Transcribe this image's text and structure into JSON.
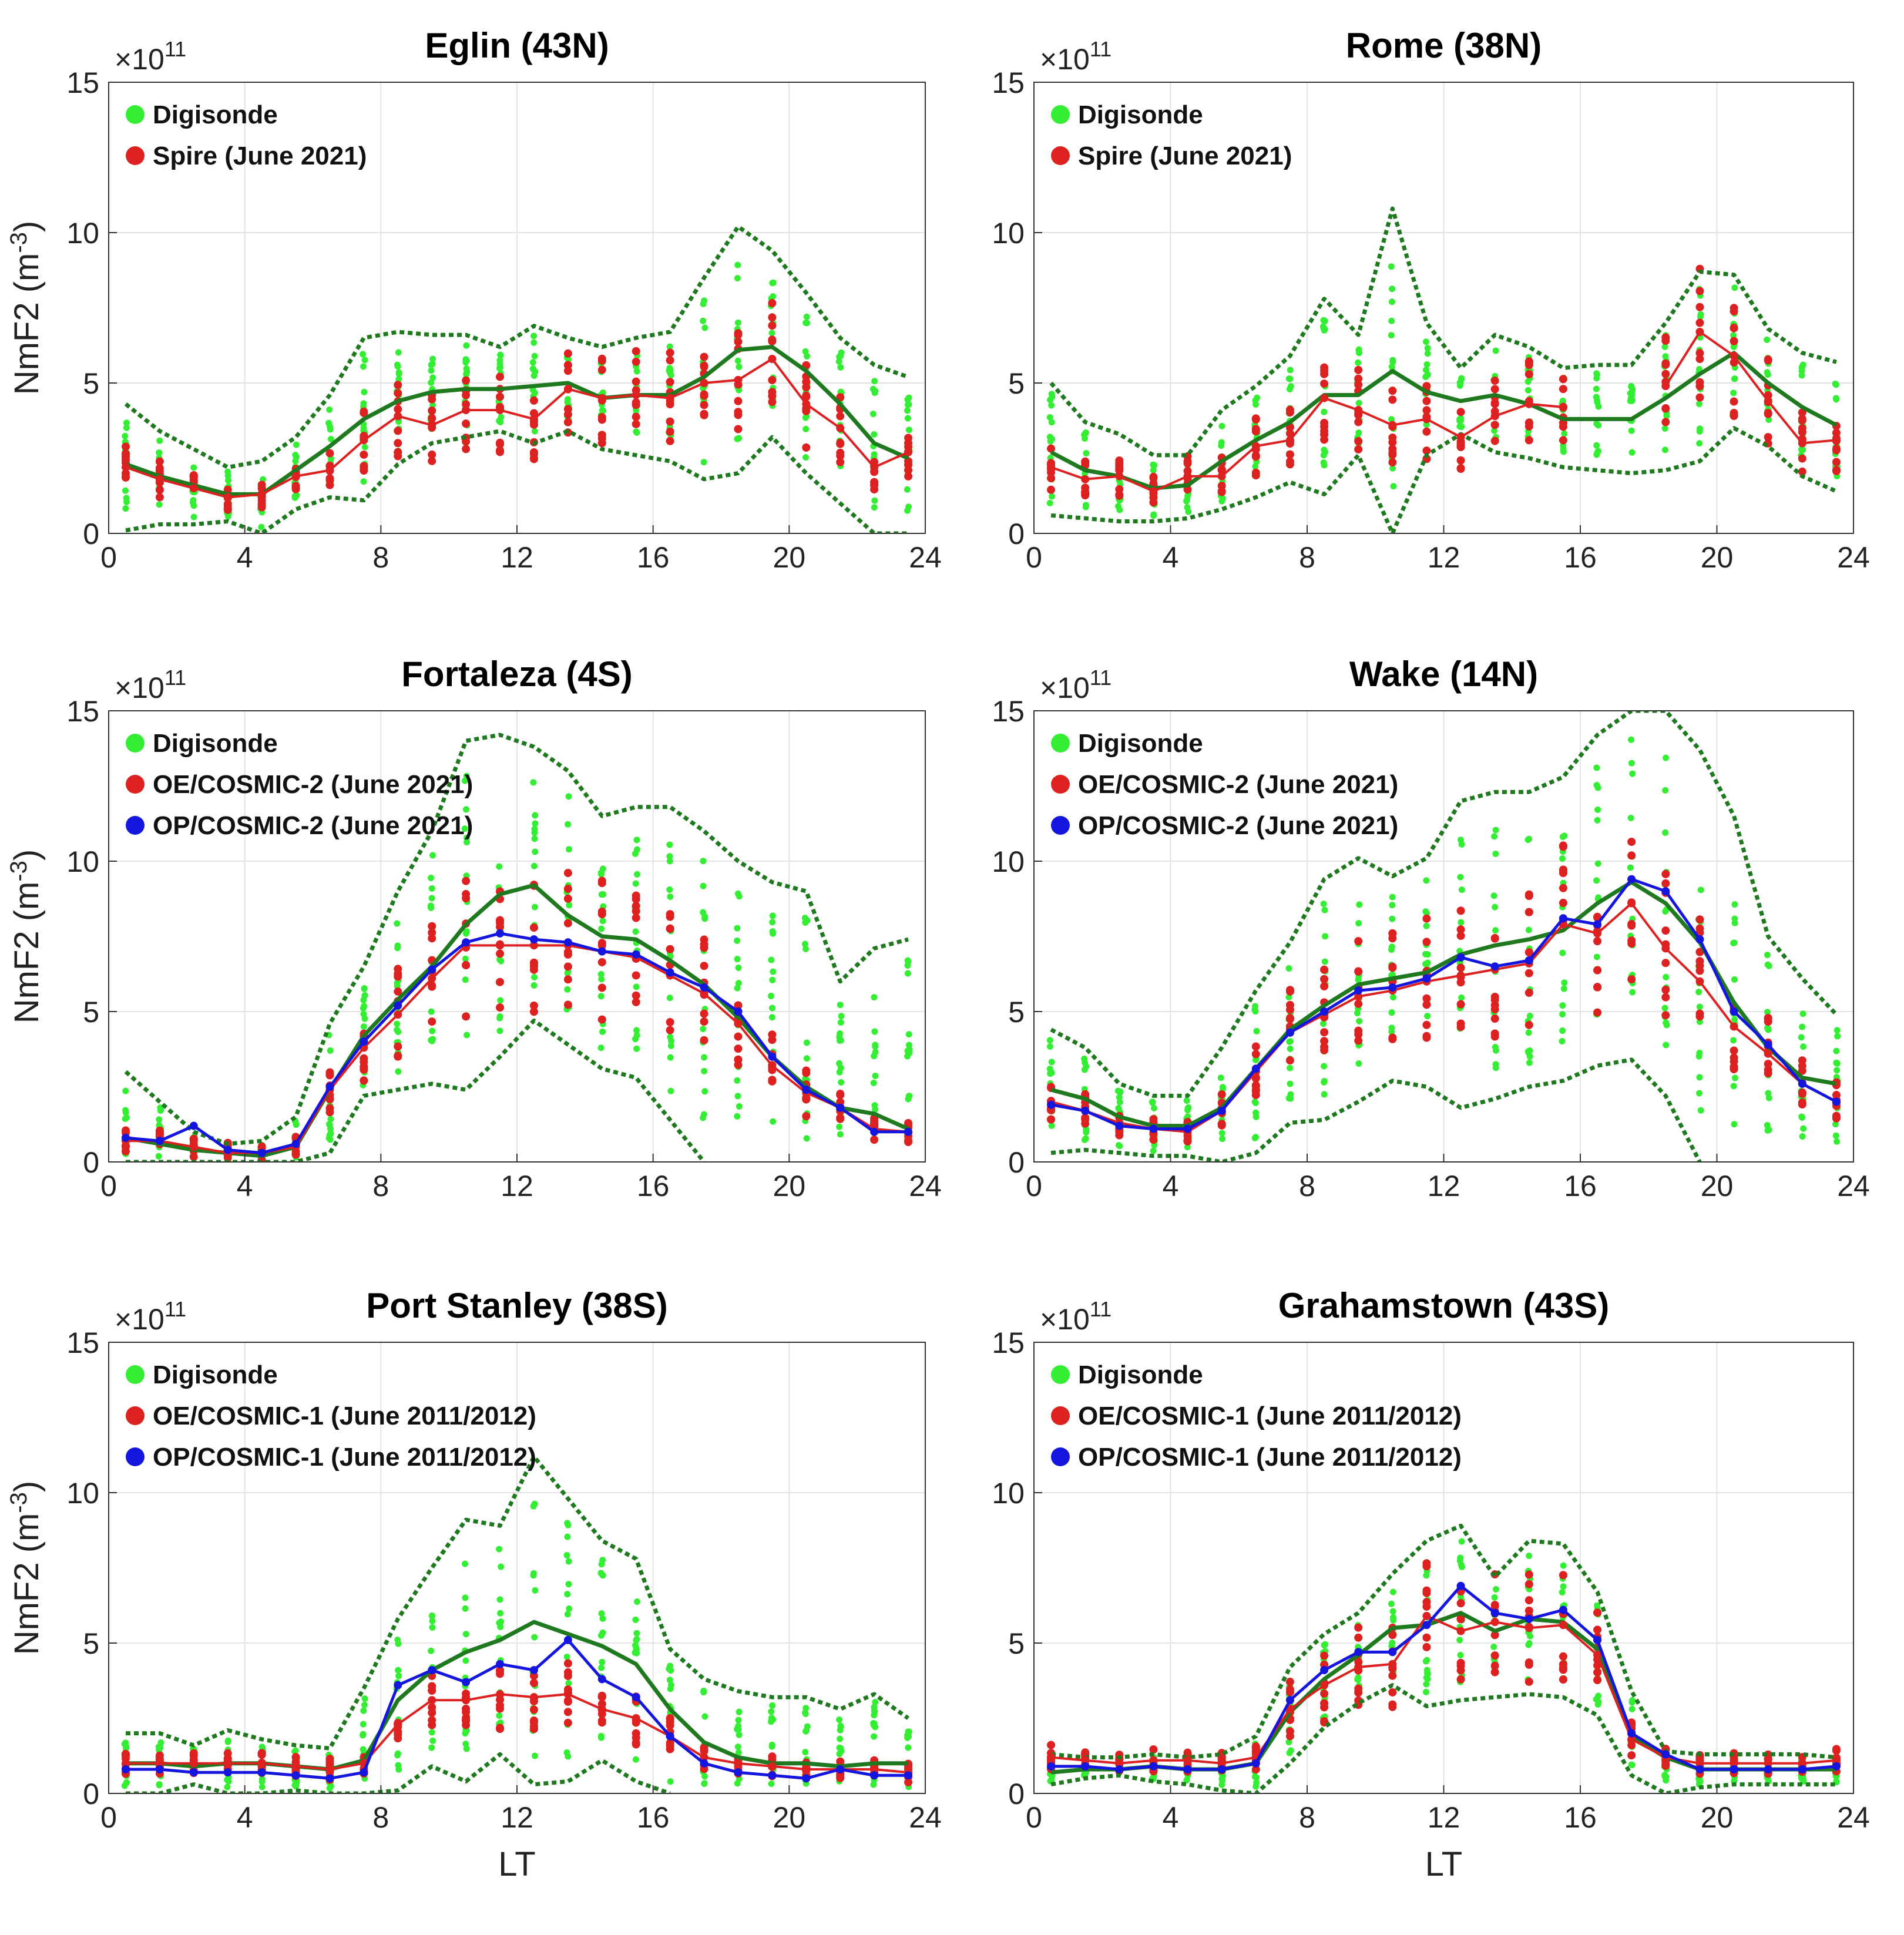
{
  "figure": {
    "ylabel_base": "NmF2 (m",
    "ylabel_sup": "-3",
    "ylabel_close": ")",
    "xlabel": "LT",
    "exponent_base": "×10",
    "exponent_power": "11",
    "colors": {
      "digisonde": "#33ee33",
      "oe": "#dd2020",
      "op": "#1515e0",
      "mean": "#1f7a1f",
      "bounds": "#1f7a1f"
    }
  },
  "chart_data": [
    {
      "type": "line",
      "title": "Eglin (43N)",
      "xlabel": "",
      "ylabel": "NmF2 (m-3)",
      "xlim": [
        0,
        24
      ],
      "ylim": [
        0,
        15
      ],
      "xticks": [
        "0",
        "4",
        "8",
        "12",
        "16",
        "20",
        "24"
      ],
      "yticks": [
        "0",
        "5",
        "10",
        "15"
      ],
      "y_multiplier": "1e11",
      "legend": [
        "Digisonde",
        "Spire (June 2021)"
      ],
      "x": [
        0.5,
        1.5,
        2.5,
        3.5,
        4.5,
        5.5,
        6.5,
        7.5,
        8.5,
        9.5,
        10.5,
        11.5,
        12.5,
        13.5,
        14.5,
        15.5,
        16.5,
        17.5,
        18.5,
        19.5,
        20.5,
        21.5,
        22.5,
        23.5
      ],
      "series": [
        {
          "name": "Digisonde mean",
          "values": [
            2.3,
            1.9,
            1.6,
            1.3,
            1.3,
            2.1,
            2.9,
            3.8,
            4.4,
            4.7,
            4.8,
            4.8,
            4.9,
            5.0,
            4.5,
            4.6,
            4.6,
            5.2,
            6.1,
            6.2,
            5.4,
            4.3,
            3.0,
            2.5
          ]
        },
        {
          "name": "Digisonde upper",
          "values": [
            4.3,
            3.4,
            2.8,
            2.2,
            2.4,
            3.2,
            4.6,
            6.5,
            6.7,
            6.6,
            6.6,
            6.2,
            6.9,
            6.5,
            6.2,
            6.5,
            6.7,
            8.5,
            10.2,
            9.4,
            8.0,
            6.5,
            5.6,
            5.2
          ]
        },
        {
          "name": "Digisonde lower",
          "values": [
            0.1,
            0.3,
            0.3,
            0.4,
            0.0,
            0.8,
            1.2,
            1.1,
            2.3,
            3.0,
            3.2,
            3.4,
            3.0,
            3.4,
            2.8,
            2.6,
            2.4,
            1.8,
            2.0,
            3.2,
            2.0,
            1.0,
            0.0,
            0.0
          ]
        },
        {
          "name": "Spire (June 2021)",
          "values": [
            2.2,
            1.8,
            1.5,
            1.2,
            1.3,
            1.9,
            2.1,
            3.1,
            3.9,
            3.6,
            4.1,
            4.1,
            3.8,
            4.8,
            4.5,
            4.6,
            4.5,
            5.0,
            5.1,
            5.8,
            4.3,
            3.5,
            2.2,
            2.7
          ]
        }
      ]
    },
    {
      "type": "line",
      "title": "Rome (38N)",
      "xlabel": "",
      "ylabel": "",
      "xlim": [
        0,
        24
      ],
      "ylim": [
        0,
        15
      ],
      "xticks": [
        "0",
        "4",
        "8",
        "12",
        "16",
        "20",
        "24"
      ],
      "yticks": [
        "0",
        "5",
        "10",
        "15"
      ],
      "y_multiplier": "1e11",
      "legend": [
        "Digisonde",
        "Spire (June 2021)"
      ],
      "x": [
        0.5,
        1.5,
        2.5,
        3.5,
        4.5,
        5.5,
        6.5,
        7.5,
        8.5,
        9.5,
        10.5,
        11.5,
        12.5,
        13.5,
        14.5,
        15.5,
        16.5,
        17.5,
        18.5,
        19.5,
        20.5,
        21.5,
        22.5,
        23.5
      ],
      "series": [
        {
          "name": "Digisonde mean",
          "values": [
            2.7,
            2.1,
            1.9,
            1.5,
            1.6,
            2.4,
            3.1,
            3.7,
            4.6,
            4.6,
            5.4,
            4.7,
            4.4,
            4.6,
            4.3,
            3.8,
            3.8,
            3.8,
            4.5,
            5.3,
            6.0,
            5.0,
            4.2,
            3.6
          ]
        },
        {
          "name": "Digisonde upper",
          "values": [
            5.0,
            3.7,
            3.3,
            2.6,
            2.6,
            4.1,
            4.9,
            5.9,
            7.8,
            6.6,
            10.8,
            7.0,
            5.5,
            6.6,
            6.2,
            5.5,
            5.6,
            5.6,
            7.0,
            8.7,
            8.6,
            6.8,
            6.0,
            5.7
          ]
        },
        {
          "name": "Digisonde lower",
          "values": [
            0.6,
            0.5,
            0.4,
            0.4,
            0.5,
            0.8,
            1.2,
            1.7,
            1.3,
            2.6,
            0.0,
            2.6,
            3.3,
            2.7,
            2.5,
            2.2,
            2.1,
            2.0,
            2.1,
            2.4,
            3.5,
            2.9,
            1.9,
            1.4
          ]
        },
        {
          "name": "Spire (June 2021)",
          "values": [
            2.2,
            1.8,
            1.9,
            1.4,
            1.9,
            1.9,
            2.9,
            3.1,
            4.5,
            4.1,
            3.6,
            3.8,
            3.2,
            3.9,
            4.3,
            4.2,
            null,
            null,
            4.9,
            6.7,
            5.9,
            4.4,
            3.0,
            3.1
          ]
        }
      ]
    },
    {
      "type": "line",
      "title": "Fortaleza (4S)",
      "xlabel": "",
      "ylabel": "NmF2 (m-3)",
      "xlim": [
        0,
        24
      ],
      "ylim": [
        0,
        15
      ],
      "xticks": [
        "0",
        "4",
        "8",
        "12",
        "16",
        "20",
        "24"
      ],
      "yticks": [
        "0",
        "5",
        "10",
        "15"
      ],
      "y_multiplier": "1e11",
      "legend": [
        "Digisonde",
        "OE/COSMIC-2 (June 2021)",
        "OP/COSMIC-2 (June 2021)"
      ],
      "x": [
        0.5,
        1.5,
        2.5,
        3.5,
        4.5,
        5.5,
        6.5,
        7.5,
        8.5,
        9.5,
        10.5,
        11.5,
        12.5,
        13.5,
        14.5,
        15.5,
        16.5,
        17.5,
        18.5,
        19.5,
        20.5,
        21.5,
        22.5,
        23.5
      ],
      "series": [
        {
          "name": "Digisonde mean",
          "values": [
            0.8,
            0.6,
            0.4,
            0.3,
            0.2,
            0.5,
            2.4,
            4.2,
            5.4,
            6.5,
            7.9,
            8.9,
            9.2,
            8.2,
            7.5,
            7.4,
            6.7,
            5.9,
            4.8,
            3.5,
            2.5,
            1.8,
            1.6,
            1.1
          ]
        },
        {
          "name": "Digisonde upper",
          "values": [
            3.0,
            2.0,
            1.0,
            0.6,
            0.7,
            1.5,
            4.6,
            6.5,
            9.0,
            11.0,
            14.0,
            14.2,
            13.8,
            13.0,
            11.5,
            11.8,
            11.8,
            11.0,
            10.0,
            9.3,
            9.0,
            6.0,
            7.1,
            7.4
          ]
        },
        {
          "name": "Digisonde lower",
          "values": [
            0.0,
            0.0,
            0.0,
            0.0,
            0.0,
            0.0,
            0.3,
            2.2,
            2.4,
            2.6,
            2.4,
            3.5,
            4.7,
            3.9,
            3.1,
            2.8,
            1.4,
            0.0,
            null,
            null,
            null,
            null,
            null,
            null
          ]
        },
        {
          "name": "OE/COSMIC-2 (June 2021)",
          "values": [
            0.7,
            0.7,
            0.5,
            0.3,
            0.3,
            0.5,
            2.4,
            3.8,
            4.9,
            6.1,
            7.2,
            7.2,
            7.2,
            7.2,
            7.0,
            6.8,
            6.2,
            5.6,
            4.6,
            3.2,
            2.3,
            1.8,
            1.1,
            1.0
          ]
        },
        {
          "name": "OP/COSMIC-2 (June 2021)",
          "values": [
            0.8,
            0.7,
            1.2,
            0.4,
            0.3,
            0.6,
            2.5,
            4.0,
            5.2,
            6.4,
            7.3,
            7.6,
            7.4,
            7.3,
            7.0,
            6.9,
            6.3,
            5.8,
            5.0,
            3.5,
            2.4,
            1.8,
            1.0,
            1.0
          ]
        }
      ]
    },
    {
      "type": "line",
      "title": "Wake (14N)",
      "xlabel": "",
      "ylabel": "",
      "xlim": [
        0,
        24
      ],
      "ylim": [
        0,
        15
      ],
      "xticks": [
        "0",
        "4",
        "8",
        "12",
        "16",
        "20",
        "24"
      ],
      "yticks": [
        "0",
        "5",
        "10",
        "15"
      ],
      "y_multiplier": "1e11",
      "legend": [
        "Digisonde",
        "OE/COSMIC-2 (June 2021)",
        "OP/COSMIC-2 (June 2021)"
      ],
      "x": [
        0.5,
        1.5,
        2.5,
        3.5,
        4.5,
        5.5,
        6.5,
        7.5,
        8.5,
        9.5,
        10.5,
        11.5,
        12.5,
        13.5,
        14.5,
        15.5,
        16.5,
        17.5,
        18.5,
        19.5,
        20.5,
        21.5,
        22.5,
        23.5
      ],
      "series": [
        {
          "name": "Digisonde mean",
          "values": [
            2.4,
            2.1,
            1.5,
            1.2,
            1.2,
            1.8,
            3.1,
            4.4,
            5.2,
            5.9,
            6.1,
            6.3,
            6.9,
            7.2,
            7.4,
            7.7,
            8.6,
            9.3,
            8.6,
            7.3,
            5.3,
            3.8,
            2.8,
            2.6
          ]
        },
        {
          "name": "Digisonde upper",
          "values": [
            4.4,
            3.8,
            2.6,
            2.2,
            2.2,
            3.8,
            5.7,
            7.3,
            9.4,
            10.1,
            9.5,
            10.1,
            12.0,
            12.3,
            12.3,
            12.8,
            14.2,
            15.3,
            15.0,
            13.7,
            11.5,
            7.5,
            6.1,
            4.9
          ]
        },
        {
          "name": "Digisonde lower",
          "values": [
            0.3,
            0.4,
            0.3,
            0.2,
            0.2,
            0.0,
            0.3,
            1.3,
            1.4,
            2.0,
            2.7,
            2.5,
            1.8,
            2.1,
            2.5,
            2.7,
            3.2,
            3.4,
            2.2,
            0.0,
            null,
            null,
            null,
            0.3
          ]
        },
        {
          "name": "OE/COSMIC-2 (June 2021)",
          "values": [
            2.0,
            1.7,
            1.3,
            1.1,
            1.0,
            1.7,
            3.0,
            4.3,
            4.9,
            5.5,
            5.7,
            6.0,
            6.2,
            6.4,
            6.6,
            7.9,
            7.6,
            8.6,
            7.1,
            6.0,
            4.5,
            3.6,
            2.6,
            2.0
          ]
        },
        {
          "name": "OP/COSMIC-2 (June 2021)",
          "values": [
            1.9,
            1.7,
            1.2,
            1.1,
            1.1,
            1.7,
            3.1,
            4.3,
            5.0,
            5.7,
            5.8,
            6.1,
            6.8,
            6.5,
            6.7,
            8.1,
            7.9,
            9.4,
            9.0,
            7.4,
            5.0,
            3.9,
            2.6,
            2.0
          ]
        }
      ]
    },
    {
      "type": "line",
      "title": "Port Stanley (38S)",
      "xlabel": "LT",
      "ylabel": "NmF2 (m-3)",
      "xlim": [
        0,
        24
      ],
      "ylim": [
        0,
        15
      ],
      "xticks": [
        "0",
        "4",
        "8",
        "12",
        "16",
        "20",
        "24"
      ],
      "yticks": [
        "0",
        "5",
        "10",
        "15"
      ],
      "y_multiplier": "1e11",
      "legend": [
        "Digisonde",
        "OE/COSMIC-1 (June 2011/2012)",
        "OP/COSMIC-1 (June 2011/2012)"
      ],
      "x": [
        0.5,
        1.5,
        2.5,
        3.5,
        4.5,
        5.5,
        6.5,
        7.5,
        8.5,
        9.5,
        10.5,
        11.5,
        12.5,
        13.5,
        14.5,
        15.5,
        16.5,
        17.5,
        18.5,
        19.5,
        20.5,
        21.5,
        22.5,
        23.5
      ],
      "series": [
        {
          "name": "Digisonde mean",
          "values": [
            1.0,
            1.0,
            0.9,
            1.0,
            1.0,
            0.9,
            0.8,
            1.1,
            3.1,
            4.1,
            4.7,
            5.1,
            5.7,
            5.3,
            4.9,
            4.3,
            2.8,
            1.7,
            1.2,
            1.0,
            1.0,
            0.9,
            1.0,
            1.0
          ]
        },
        {
          "name": "Digisonde upper",
          "values": [
            2.0,
            2.0,
            1.6,
            2.1,
            1.8,
            1.6,
            1.5,
            3.5,
            5.8,
            7.5,
            9.1,
            8.9,
            11.2,
            9.8,
            8.4,
            7.8,
            4.8,
            3.8,
            3.4,
            3.2,
            3.2,
            2.8,
            3.3,
            2.5
          ]
        },
        {
          "name": "Digisonde lower",
          "values": [
            0.0,
            0.0,
            0.3,
            0.0,
            0.0,
            0.1,
            0.0,
            0.0,
            0.1,
            0.9,
            0.4,
            1.3,
            0.3,
            0.4,
            1.1,
            0.4,
            0.0,
            null,
            null,
            null,
            null,
            null,
            null,
            null
          ]
        },
        {
          "name": "OE/COSMIC-1 (June 2011/2012)",
          "values": [
            1.0,
            1.0,
            1.0,
            1.0,
            1.0,
            0.9,
            0.8,
            1.0,
            2.3,
            3.1,
            3.1,
            3.3,
            3.2,
            3.3,
            2.8,
            2.5,
            1.9,
            1.2,
            1.0,
            0.9,
            0.8,
            0.8,
            0.8,
            0.7
          ]
        },
        {
          "name": "OP/COSMIC-1 (June 2011/2012)",
          "values": [
            0.8,
            0.8,
            0.7,
            0.7,
            0.7,
            0.6,
            0.5,
            0.7,
            3.6,
            4.1,
            3.7,
            4.3,
            4.1,
            5.1,
            3.8,
            3.2,
            1.9,
            1.0,
            0.7,
            0.6,
            0.5,
            0.8,
            0.6,
            0.6
          ]
        }
      ]
    },
    {
      "type": "line",
      "title": "Grahamstown (43S)",
      "xlabel": "LT",
      "ylabel": "",
      "xlim": [
        0,
        24
      ],
      "ylim": [
        0,
        15
      ],
      "xticks": [
        "0",
        "4",
        "8",
        "12",
        "16",
        "20",
        "24"
      ],
      "yticks": [
        "0",
        "5",
        "10",
        "15"
      ],
      "y_multiplier": "1e11",
      "legend": [
        "Digisonde",
        "OE/COSMIC-1 (June 2011/2012)",
        "OP/COSMIC-1 (June 2011/2012)"
      ],
      "x": [
        0.5,
        1.5,
        2.5,
        3.5,
        4.5,
        5.5,
        6.5,
        7.5,
        8.5,
        9.5,
        10.5,
        11.5,
        12.5,
        13.5,
        14.5,
        15.5,
        16.5,
        17.5,
        18.5,
        19.5,
        20.5,
        21.5,
        22.5,
        23.5
      ],
      "series": [
        {
          "name": "Digisonde mean",
          "values": [
            0.7,
            0.8,
            0.8,
            0.9,
            0.8,
            0.8,
            1.0,
            2.7,
            3.8,
            4.6,
            5.5,
            5.6,
            6.0,
            5.4,
            5.8,
            5.7,
            4.8,
            1.9,
            1.2,
            0.8,
            0.8,
            0.8,
            0.8,
            0.8
          ]
        },
        {
          "name": "Digisonde upper",
          "values": [
            1.3,
            1.2,
            1.2,
            1.3,
            1.2,
            1.3,
            1.9,
            4.2,
            5.3,
            6.0,
            7.3,
            8.4,
            8.9,
            7.2,
            8.4,
            8.3,
            6.7,
            3.4,
            1.4,
            1.3,
            1.3,
            1.3,
            1.3,
            1.2
          ]
        },
        {
          "name": "Digisonde lower",
          "values": [
            0.3,
            0.5,
            0.6,
            0.4,
            0.3,
            0.1,
            0.0,
            1.0,
            2.2,
            3.0,
            3.6,
            2.9,
            3.1,
            3.2,
            3.3,
            3.2,
            2.6,
            0.6,
            0.0,
            0.2,
            0.3,
            0.3,
            0.3,
            0.3
          ]
        },
        {
          "name": "OE/COSMIC-1 (June 2011/2012)",
          "values": [
            1.2,
            1.1,
            1.0,
            1.1,
            1.1,
            1.0,
            1.2,
            2.8,
            3.6,
            4.2,
            4.3,
            5.9,
            5.4,
            5.7,
            5.5,
            5.6,
            4.6,
            1.8,
            1.2,
            1.0,
            1.0,
            1.0,
            1.0,
            1.1
          ]
        },
        {
          "name": "OP/COSMIC-1 (June 2011/2012)",
          "values": [
            0.9,
            0.9,
            0.8,
            0.9,
            0.8,
            0.8,
            1.0,
            3.1,
            4.1,
            4.7,
            4.7,
            5.6,
            6.9,
            6.0,
            5.8,
            6.1,
            5.1,
            2.0,
            1.3,
            0.8,
            0.8,
            0.8,
            0.8,
            0.9
          ]
        }
      ]
    }
  ]
}
